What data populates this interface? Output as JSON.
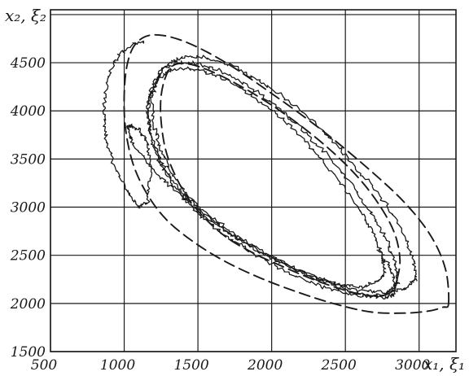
{
  "chart_data": {
    "type": "line",
    "title": "",
    "xlabel": "x₁, ξ₁",
    "ylabel": "x₂, ξ₂",
    "xlim": [
      500,
      3250
    ],
    "ylim": [
      1500,
      5050
    ],
    "x_ticks": [
      500,
      1000,
      1500,
      2000,
      2500,
      3000
    ],
    "y_ticks": [
      1500,
      2000,
      2500,
      3000,
      3500,
      4000,
      4500
    ],
    "grid": true,
    "legend": "none",
    "colors": {
      "line": "#1a1a1a",
      "grid": "#1a1a1a",
      "background": "#ffffff"
    },
    "series": [
      {
        "style": "dashed",
        "x": [
          2850,
          2870,
          2840,
          2760,
          2620,
          2430,
          2210,
          1980,
          1750,
          1560,
          1420,
          1330,
          1280,
          1250,
          1250,
          1280,
          1340,
          1430,
          1550,
          1700,
          1880,
          2080,
          2280,
          2470,
          2620,
          2740,
          2820,
          2850
        ],
        "y": [
          2250,
          2450,
          2700,
          2950,
          3250,
          3550,
          3830,
          4080,
          4290,
          4430,
          4490,
          4470,
          4350,
          4150,
          3900,
          3600,
          3350,
          3100,
          2880,
          2680,
          2520,
          2380,
          2250,
          2150,
          2090,
          2080,
          2130,
          2250
        ]
      },
      {
        "style": "dashed",
        "x": [
          3200,
          3180,
          3080,
          2900,
          2640,
          2340,
          2010,
          1690,
          1410,
          1200,
          1080,
          1020,
          1000,
          1010,
          1060,
          1150,
          1280,
          1460,
          1680,
          1930,
          2190,
          2440,
          2680,
          2900,
          3060,
          3160,
          3200
        ],
        "y": [
          2000,
          2350,
          2700,
          3050,
          3420,
          3800,
          4170,
          4500,
          4720,
          4790,
          4700,
          4480,
          4150,
          3800,
          3450,
          3150,
          2880,
          2650,
          2440,
          2260,
          2110,
          1990,
          1910,
          1900,
          1920,
          1960,
          2000
        ]
      },
      {
        "style": "noisy",
        "x": [
          2980,
          2960,
          2900,
          2800,
          2650,
          2480,
          2300,
          2110,
          1910,
          1720,
          1540,
          1400,
          1290,
          1220,
          1190,
          1200,
          1240,
          1310,
          1420,
          1570,
          1760,
          1970,
          2190,
          2410,
          2610,
          2780,
          2900,
          2980
        ],
        "y": [
          2250,
          2450,
          2700,
          2980,
          3280,
          3580,
          3860,
          4110,
          4320,
          4480,
          4560,
          4560,
          4480,
          4330,
          4120,
          3870,
          3620,
          3380,
          3140,
          2920,
          2700,
          2510,
          2340,
          2210,
          2130,
          2110,
          2160,
          2250
        ]
      },
      {
        "style": "noisy",
        "x": [
          2860,
          2840,
          2780,
          2680,
          2550,
          2390,
          2210,
          2020,
          1830,
          1650,
          1480,
          1350,
          1250,
          1190,
          1160,
          1170,
          1210,
          1290,
          1400,
          1550,
          1730,
          1930,
          2140,
          2350,
          2540,
          2690,
          2800,
          2860
        ],
        "y": [
          2220,
          2420,
          2660,
          2930,
          3220,
          3520,
          3800,
          4060,
          4270,
          4420,
          4500,
          4500,
          4420,
          4270,
          4060,
          3810,
          3560,
          3320,
          3090,
          2870,
          2660,
          2470,
          2300,
          2170,
          2090,
          2070,
          2120,
          2220
        ]
      },
      {
        "style": "noisy",
        "x": [
          2770,
          2750,
          2690,
          2590,
          2460,
          2310,
          2140,
          1960,
          1780,
          1610,
          1450,
          1320,
          1230,
          1180,
          1160,
          1180,
          1230,
          1310,
          1420,
          1560,
          1730,
          1910,
          2100,
          2290,
          2470,
          2610,
          2710,
          2770
        ],
        "y": [
          2300,
          2500,
          2730,
          2990,
          3270,
          3550,
          3820,
          4060,
          4250,
          4380,
          4440,
          4430,
          4340,
          4190,
          3990,
          3760,
          3530,
          3310,
          3100,
          2900,
          2710,
          2540,
          2390,
          2270,
          2190,
          2170,
          2220,
          2300
        ]
      },
      {
        "style": "noisy",
        "x": [
          1140,
          1050,
          960,
          900,
          870,
          860,
          880,
          930,
          1010,
          1100,
          1160,
          1180,
          1160,
          1100,
          1040,
          1020,
          1060,
          1160,
          1300,
          1480,
          1700,
          1950,
          2200,
          2430,
          2620,
          2750,
          2820,
          2840,
          2800,
          2720
        ],
        "y": [
          4720,
          4690,
          4580,
          4400,
          4180,
          3930,
          3680,
          3440,
          3200,
          3000,
          3050,
          3400,
          3650,
          3800,
          3850,
          3800,
          3650,
          3450,
          3230,
          2990,
          2750,
          2520,
          2330,
          2180,
          2090,
          2060,
          2080,
          2180,
          2380,
          2550
        ]
      }
    ]
  }
}
